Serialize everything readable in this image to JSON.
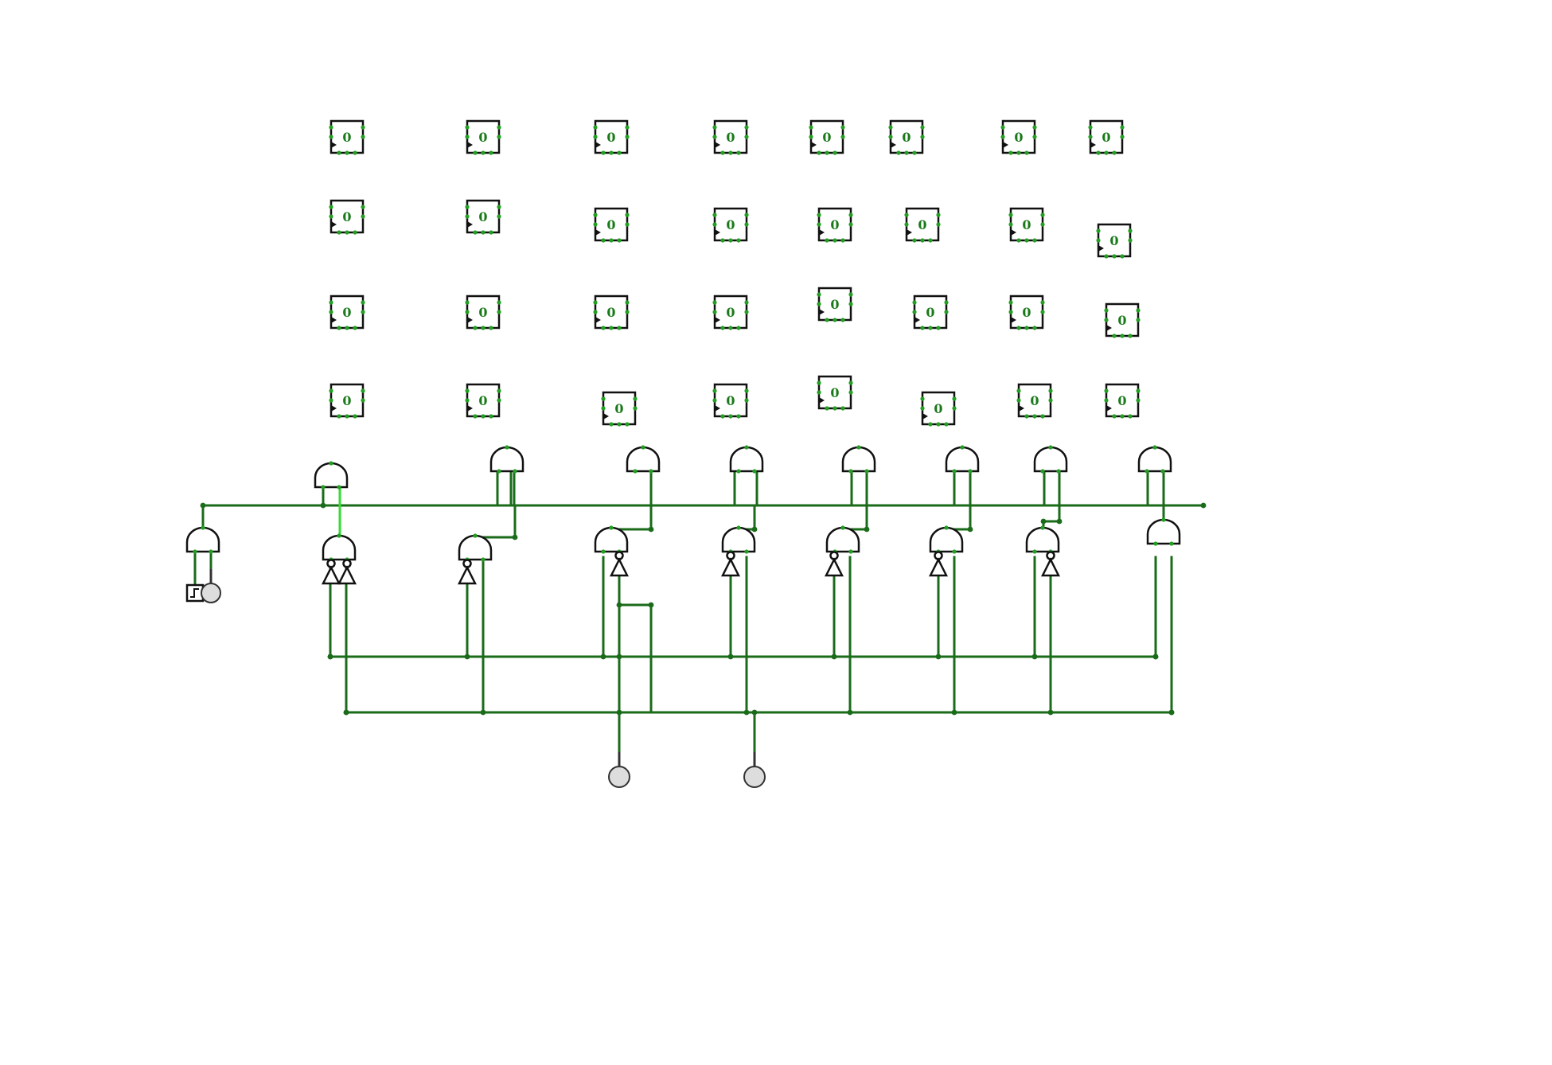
{
  "diagram": {
    "type": "logic-circuit",
    "wire_color": "#1a6b1a",
    "active_wire_color": "#33dd33",
    "register_value_color": "#1a7a1a"
  },
  "registers": {
    "rows": [
      [
        "0",
        "0",
        "0",
        "0",
        "0",
        "0",
        "0",
        "0"
      ],
      [
        "0",
        "0",
        "0",
        "0",
        "0",
        "0",
        "0",
        "0"
      ],
      [
        "0",
        "0",
        "0",
        "0",
        "0",
        "0",
        "0",
        "0"
      ],
      [
        "0",
        "0",
        "0",
        "0",
        "0",
        "0",
        "0",
        "0"
      ]
    ]
  },
  "components": {
    "clock": "clock-icon",
    "inputs": [
      "input-pin-clock",
      "input-pin-a",
      "input-pin-b"
    ],
    "gate_type": "and-gate",
    "inverter_type": "not-gate"
  }
}
